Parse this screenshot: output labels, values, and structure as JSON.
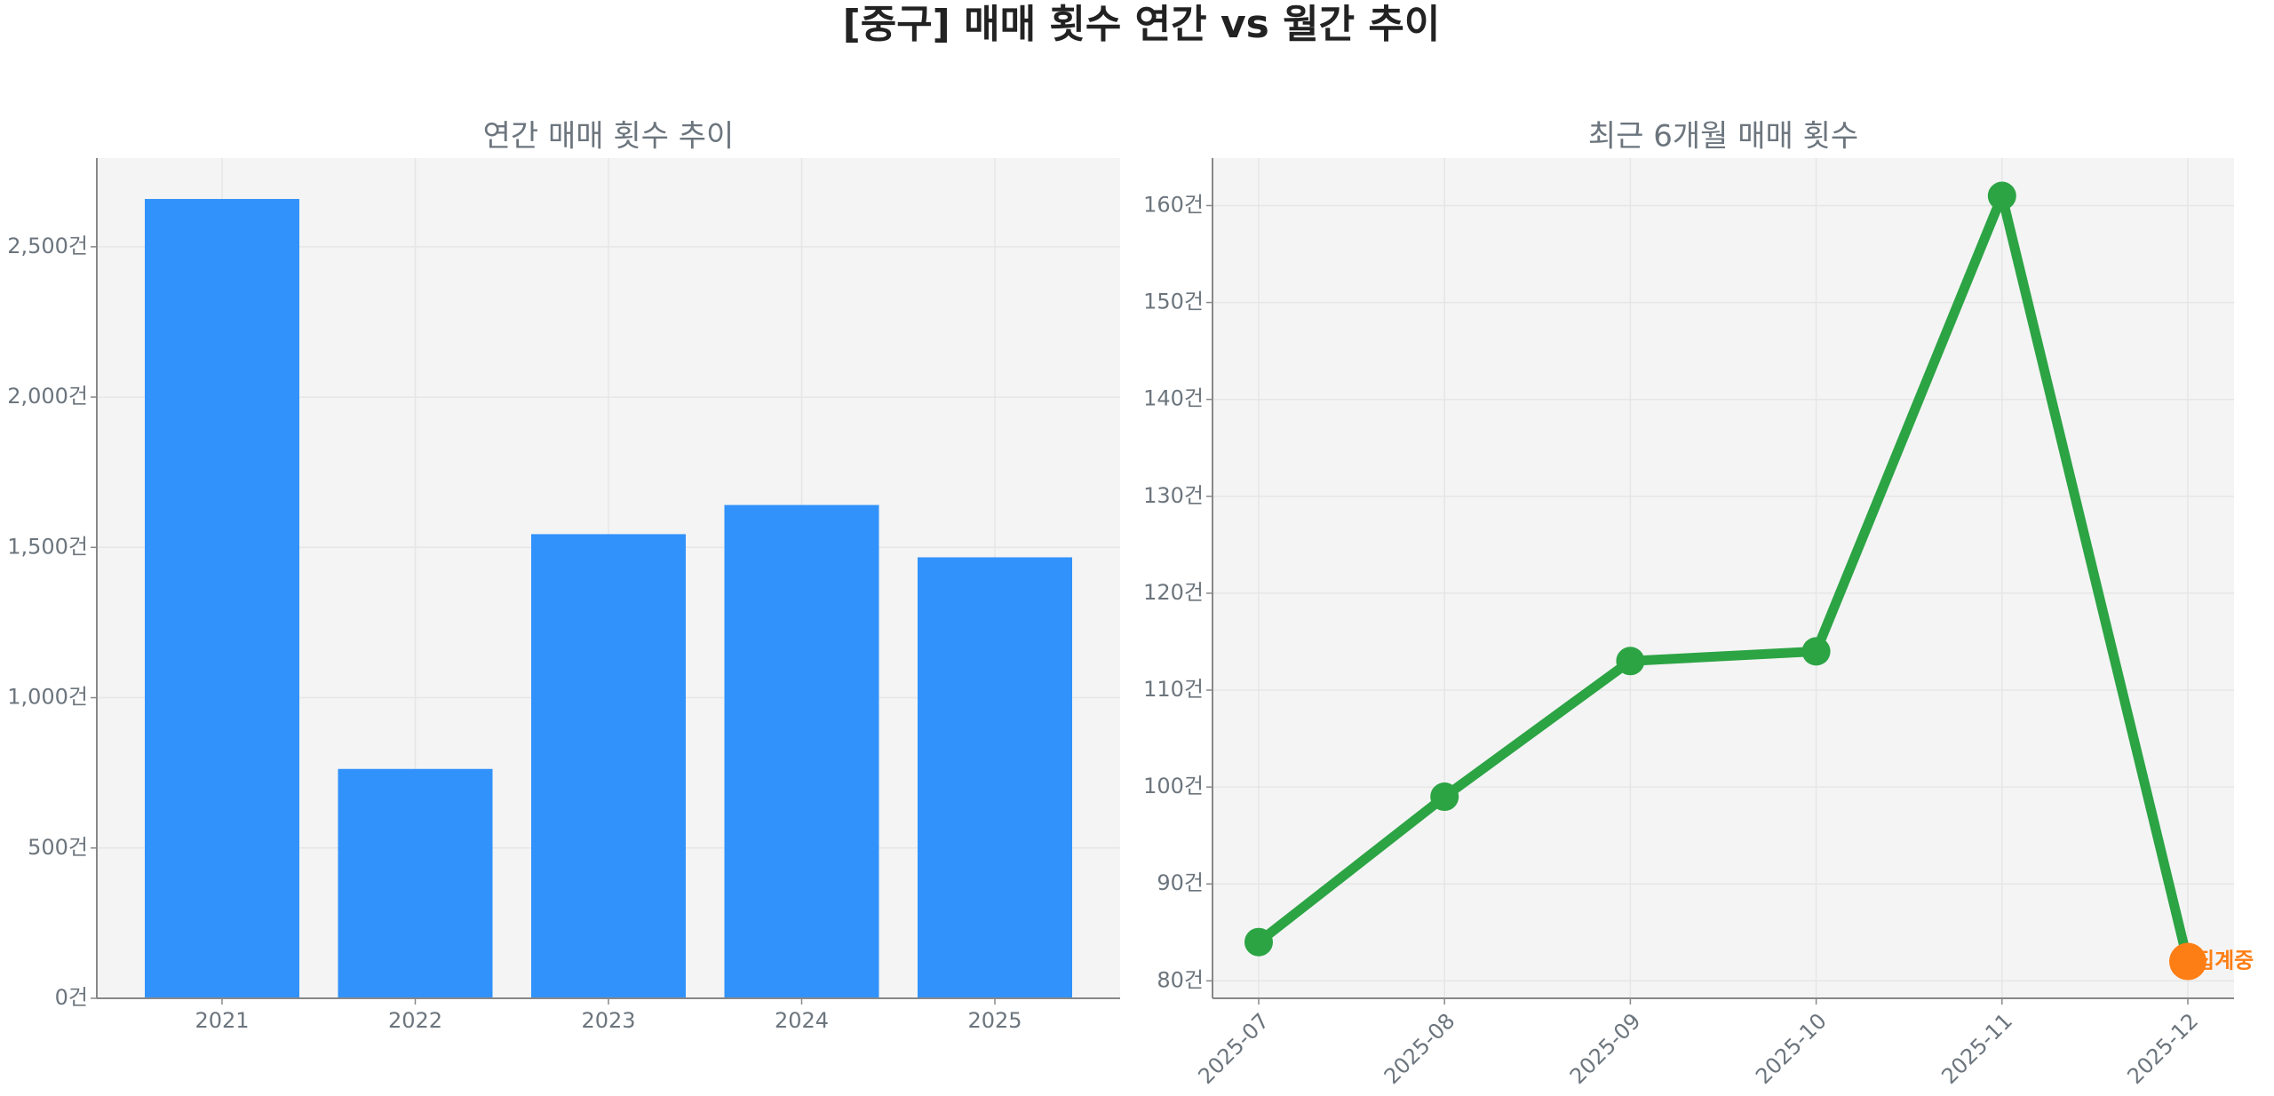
{
  "title": "[중구] 매매 횟수 연간 vs 월간 추이",
  "chart_data": [
    {
      "type": "bar",
      "title": "연간 매매 횟수 추이",
      "categories": [
        "2021",
        "2022",
        "2023",
        "2024",
        "2025"
      ],
      "values": [
        2659,
        763,
        1544,
        1641,
        1467
      ],
      "color": "#3192fb",
      "ylim": [
        0,
        2795
      ],
      "yticks": [
        {
          "value": 0,
          "label": "0건"
        },
        {
          "value": 500,
          "label": "500건"
        },
        {
          "value": 1000,
          "label": "1,000건"
        },
        {
          "value": 1500,
          "label": "1,500건"
        },
        {
          "value": 2000,
          "label": "2,000건"
        },
        {
          "value": 2500,
          "label": "2,500건"
        }
      ],
      "grid": true
    },
    {
      "type": "line",
      "title": "최근 6개월 매매 횟수",
      "categories": [
        "2025-07",
        "2025-08",
        "2025-09",
        "2025-10",
        "2025-11",
        "2025-12"
      ],
      "values": [
        84,
        99,
        113,
        114,
        161,
        82
      ],
      "color": "#2ca444",
      "highlight": {
        "index": 5,
        "color": "#fd7e14",
        "label": "집계중"
      },
      "ylim": [
        78.2,
        164.9
      ],
      "yticks": [
        {
          "value": 80,
          "label": "80건"
        },
        {
          "value": 90,
          "label": "90건"
        },
        {
          "value": 100,
          "label": "100건"
        },
        {
          "value": 110,
          "label": "110건"
        },
        {
          "value": 120,
          "label": "120건"
        },
        {
          "value": 130,
          "label": "130건"
        },
        {
          "value": 140,
          "label": "140건"
        },
        {
          "value": 150,
          "label": "150건"
        },
        {
          "value": 160,
          "label": "160건"
        }
      ],
      "grid": true
    }
  ]
}
